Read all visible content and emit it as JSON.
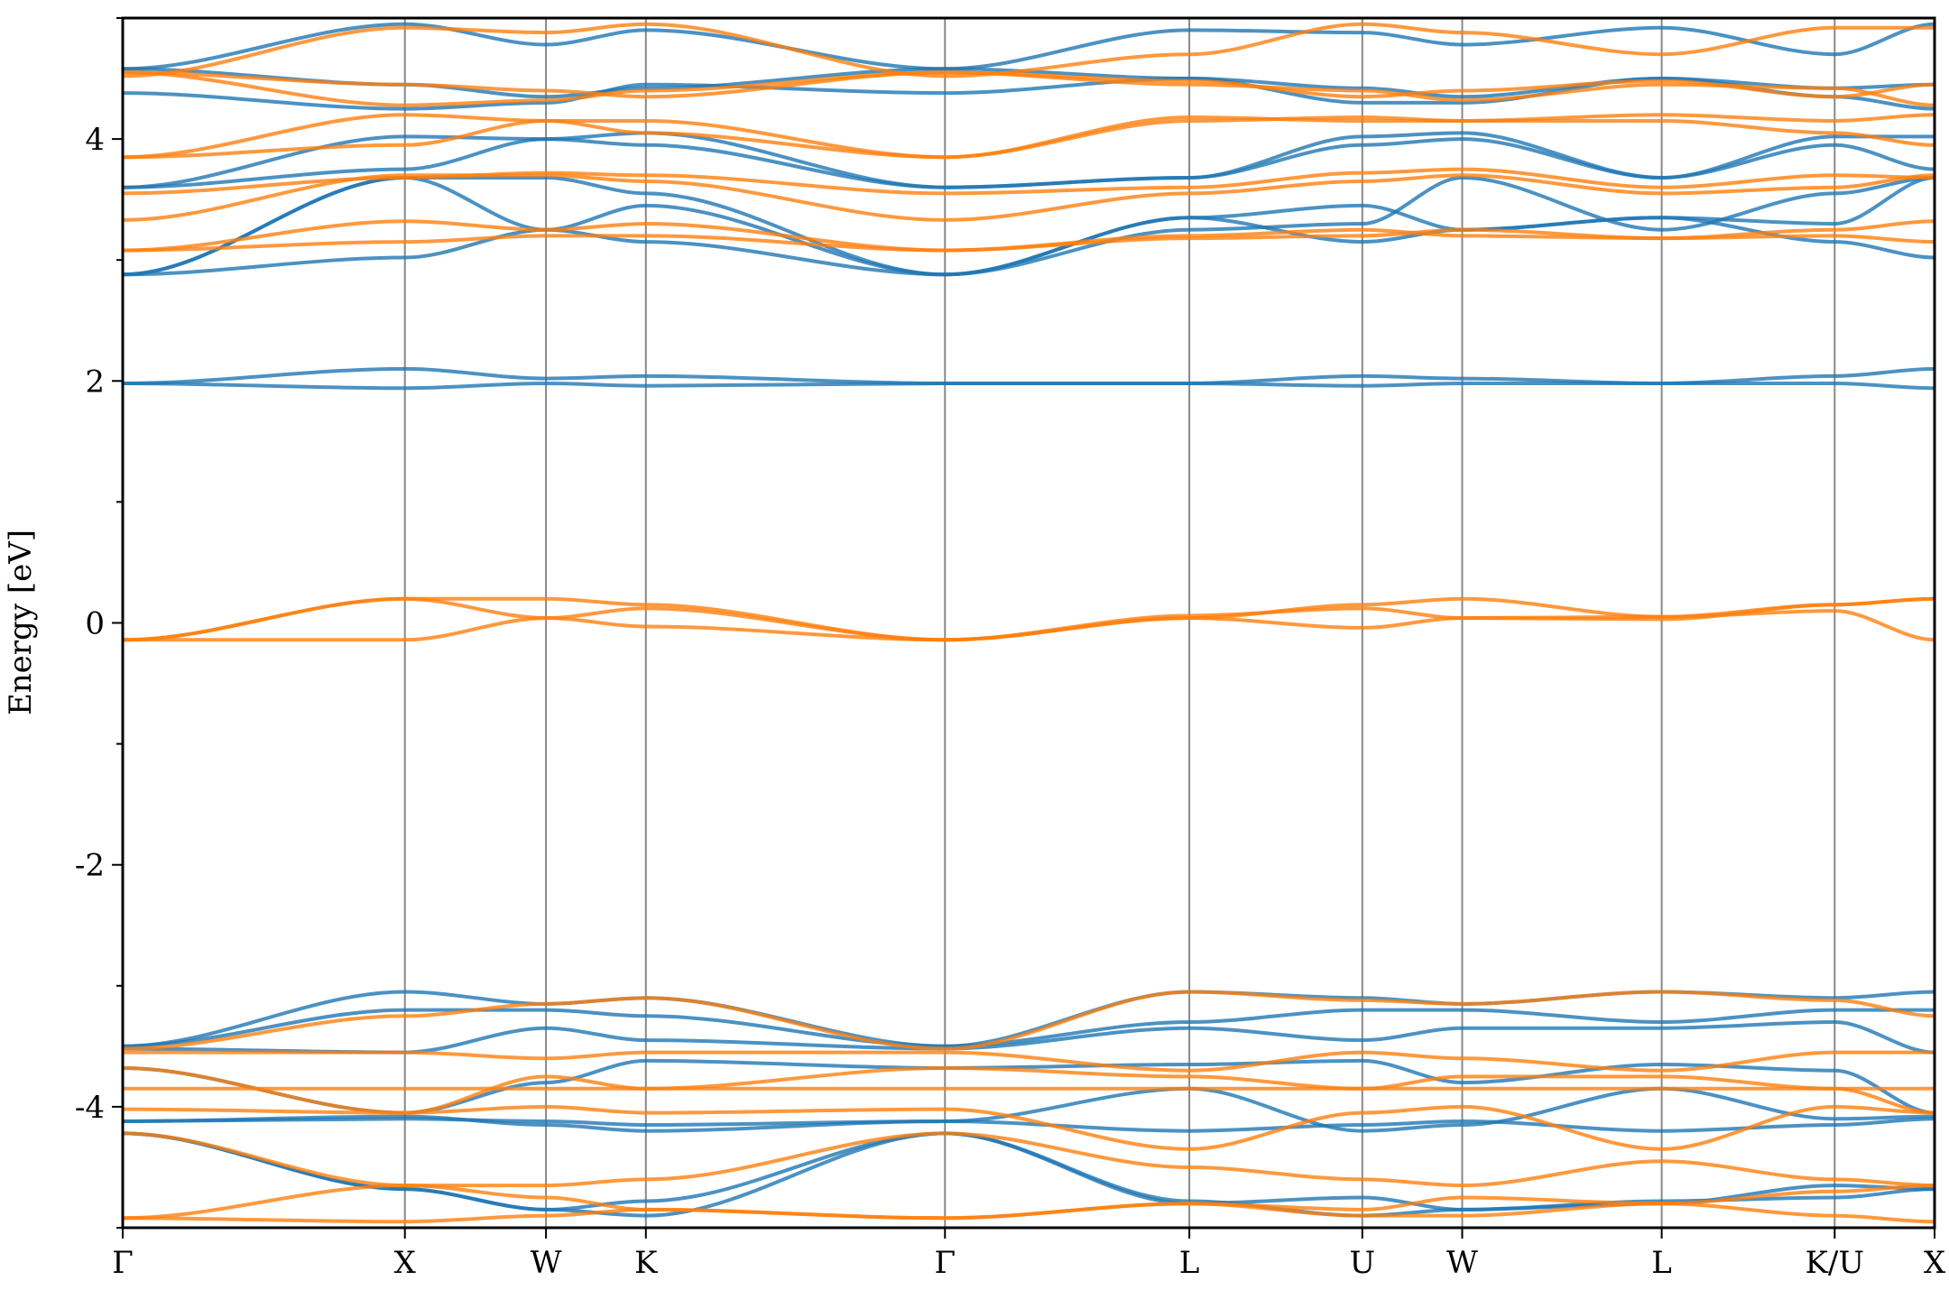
{
  "chart_data": {
    "type": "line",
    "title": "",
    "xlabel": "",
    "ylabel": "Energy [eV]",
    "ylim": [
      -5,
      5
    ],
    "grid": false,
    "legend": "none",
    "colors": {
      "spin_up": "#1f77b4",
      "spin_down": "#ff7f0e"
    },
    "kpoints": [
      {
        "label": "Γ",
        "x": 0.0
      },
      {
        "label": "X",
        "x": 1.0
      },
      {
        "label": "W",
        "x": 1.5
      },
      {
        "label": "K",
        "x": 1.854
      },
      {
        "label": "Γ",
        "x": 2.914
      },
      {
        "label": "L",
        "x": 3.78
      },
      {
        "label": "U",
        "x": 4.393
      },
      {
        "label": "W",
        "x": 4.747
      },
      {
        "label": "L",
        "x": 5.454
      },
      {
        "label": "K/U",
        "x": 6.067
      },
      {
        "label": "X",
        "x": 6.421
      }
    ],
    "yticks": [
      {
        "label": "4",
        "value": 4
      },
      {
        "label": "2",
        "value": 2
      },
      {
        "label": "0",
        "value": 0
      },
      {
        "label": "-2",
        "value": -2
      },
      {
        "label": "-4",
        "value": -4
      }
    ],
    "yminor": [
      -5,
      -3,
      -1,
      1,
      3,
      5
    ],
    "series": [
      {
        "spin": "down",
        "y": [
          -0.14,
          0.2,
          0.2,
          0.15,
          -0.14,
          0.04,
          0.15,
          0.2,
          0.05,
          0.15,
          0.2
        ]
      },
      {
        "spin": "down",
        "y": [
          -0.14,
          -0.14,
          0.04,
          -0.03,
          -0.14,
          0.04,
          -0.04,
          0.04,
          0.05,
          0.1,
          -0.14
        ]
      },
      {
        "spin": "down",
        "y": [
          -0.14,
          0.2,
          0.04,
          0.12,
          -0.14,
          0.06,
          0.12,
          0.04,
          0.03,
          0.15,
          0.2
        ]
      },
      {
        "spin": "up",
        "y": [
          1.98,
          2.1,
          2.02,
          2.04,
          1.98,
          1.98,
          2.04,
          2.02,
          1.98,
          2.04,
          2.1
        ]
      },
      {
        "spin": "up",
        "y": [
          1.98,
          1.94,
          1.98,
          1.96,
          1.98,
          1.98,
          1.96,
          1.98,
          1.98,
          1.98,
          1.94
        ]
      },
      {
        "spin": "up",
        "y": [
          2.88,
          3.02,
          3.25,
          3.15,
          2.88,
          3.35,
          3.15,
          3.25,
          3.35,
          3.15,
          3.02
        ]
      },
      {
        "spin": "up",
        "y": [
          2.88,
          3.68,
          3.25,
          3.45,
          2.88,
          3.35,
          3.45,
          3.25,
          3.35,
          3.3,
          3.68
        ]
      },
      {
        "spin": "up",
        "y": [
          2.88,
          3.68,
          3.68,
          3.55,
          2.88,
          3.25,
          3.3,
          3.68,
          3.25,
          3.55,
          3.68
        ]
      },
      {
        "spin": "up",
        "y": [
          3.6,
          3.75,
          4.0,
          3.95,
          3.6,
          3.68,
          3.95,
          4.0,
          3.68,
          3.95,
          3.75
        ]
      },
      {
        "spin": "up",
        "y": [
          3.6,
          4.02,
          4.0,
          4.05,
          3.6,
          3.68,
          4.02,
          4.05,
          3.68,
          4.02,
          4.02
        ]
      },
      {
        "spin": "up",
        "y": [
          4.38,
          4.25,
          4.3,
          4.45,
          4.38,
          4.5,
          4.3,
          4.3,
          4.5,
          4.35,
          4.25
        ]
      },
      {
        "spin": "up",
        "y": [
          4.58,
          4.45,
          4.35,
          4.42,
          4.58,
          4.5,
          4.42,
          4.35,
          4.5,
          4.42,
          4.45
        ]
      },
      {
        "spin": "up",
        "y": [
          4.58,
          4.95,
          4.78,
          4.9,
          4.58,
          4.9,
          4.88,
          4.78,
          4.92,
          4.7,
          4.95
        ]
      },
      {
        "spin": "down",
        "y": [
          3.08,
          3.15,
          3.2,
          3.2,
          3.08,
          3.2,
          3.25,
          3.2,
          3.18,
          3.2,
          3.15
        ]
      },
      {
        "spin": "down",
        "y": [
          3.08,
          3.32,
          3.25,
          3.3,
          3.08,
          3.18,
          3.2,
          3.25,
          3.18,
          3.25,
          3.32
        ]
      },
      {
        "spin": "down",
        "y": [
          3.33,
          3.7,
          3.7,
          3.65,
          3.33,
          3.55,
          3.65,
          3.7,
          3.55,
          3.6,
          3.7
        ]
      },
      {
        "spin": "down",
        "y": [
          3.55,
          3.68,
          3.72,
          3.7,
          3.55,
          3.6,
          3.72,
          3.75,
          3.6,
          3.7,
          3.68
        ]
      },
      {
        "spin": "down",
        "y": [
          3.85,
          3.95,
          4.15,
          4.05,
          3.85,
          4.15,
          4.18,
          4.15,
          4.15,
          4.05,
          3.95
        ]
      },
      {
        "spin": "down",
        "y": [
          3.85,
          4.2,
          4.15,
          4.15,
          3.85,
          4.18,
          4.15,
          4.15,
          4.2,
          4.15,
          4.2
        ]
      },
      {
        "spin": "down",
        "y": [
          4.55,
          4.28,
          4.32,
          4.4,
          4.55,
          4.45,
          4.4,
          4.32,
          4.45,
          4.42,
          4.28
        ]
      },
      {
        "spin": "down",
        "y": [
          4.55,
          4.45,
          4.4,
          4.35,
          4.55,
          4.48,
          4.35,
          4.4,
          4.48,
          4.35,
          4.45
        ]
      },
      {
        "spin": "down",
        "y": [
          4.52,
          4.92,
          4.88,
          4.95,
          4.52,
          4.7,
          4.95,
          4.88,
          4.7,
          4.92,
          4.92
        ]
      },
      {
        "spin": "up",
        "y": [
          -3.5,
          -3.05,
          -3.15,
          -3.1,
          -3.5,
          -3.05,
          -3.1,
          -3.15,
          -3.05,
          -3.1,
          -3.05
        ]
      },
      {
        "spin": "up",
        "y": [
          -3.5,
          -3.2,
          -3.2,
          -3.25,
          -3.5,
          -3.3,
          -3.2,
          -3.2,
          -3.3,
          -3.2,
          -3.2
        ]
      },
      {
        "spin": "up",
        "y": [
          -3.52,
          -3.55,
          -3.35,
          -3.45,
          -3.52,
          -3.35,
          -3.45,
          -3.35,
          -3.35,
          -3.3,
          -3.55
        ]
      },
      {
        "spin": "up",
        "y": [
          -3.68,
          -4.05,
          -3.8,
          -3.62,
          -3.68,
          -3.65,
          -3.62,
          -3.8,
          -3.65,
          -3.7,
          -4.05
        ]
      },
      {
        "spin": "up",
        "y": [
          -4.12,
          -4.1,
          -4.12,
          -4.15,
          -4.12,
          -4.2,
          -4.15,
          -4.12,
          -4.2,
          -4.15,
          -4.1
        ]
      },
      {
        "spin": "up",
        "y": [
          -4.12,
          -4.08,
          -4.15,
          -4.2,
          -4.12,
          -3.85,
          -4.2,
          -4.15,
          -3.85,
          -4.1,
          -4.08
        ]
      },
      {
        "spin": "up",
        "y": [
          -4.22,
          -4.68,
          -4.85,
          -4.78,
          -4.22,
          -4.78,
          -4.9,
          -4.85,
          -4.78,
          -4.75,
          -4.68
        ]
      },
      {
        "spin": "up",
        "y": [
          -4.22,
          -4.68,
          -4.85,
          -4.9,
          -4.22,
          -4.8,
          -4.75,
          -4.85,
          -4.8,
          -4.65,
          -4.68
        ]
      },
      {
        "spin": "down",
        "y": [
          -3.52,
          -3.25,
          -3.15,
          -3.1,
          -3.52,
          -3.05,
          -3.12,
          -3.15,
          -3.05,
          -3.12,
          -3.25
        ]
      },
      {
        "spin": "down",
        "y": [
          -3.55,
          -3.55,
          -3.6,
          -3.55,
          -3.55,
          -3.7,
          -3.55,
          -3.6,
          -3.7,
          -3.55,
          -3.55
        ]
      },
      {
        "spin": "down",
        "y": [
          -3.68,
          -4.05,
          -3.75,
          -3.85,
          -3.68,
          -3.75,
          -3.85,
          -3.75,
          -3.75,
          -3.85,
          -4.05
        ]
      },
      {
        "spin": "down",
        "y": [
          -3.85,
          -3.85,
          -3.85,
          -3.85,
          -3.85,
          -3.85,
          -3.85,
          -3.85,
          -3.85,
          -3.85,
          -3.85
        ]
      },
      {
        "spin": "down",
        "y": [
          -4.02,
          -4.05,
          -4.0,
          -4.05,
          -4.02,
          -4.35,
          -4.05,
          -4.0,
          -4.35,
          -4.0,
          -4.05
        ]
      },
      {
        "spin": "down",
        "y": [
          -4.22,
          -4.65,
          -4.65,
          -4.6,
          -4.22,
          -4.5,
          -4.6,
          -4.65,
          -4.45,
          -4.6,
          -4.65
        ]
      },
      {
        "spin": "down",
        "y": [
          -4.92,
          -4.65,
          -4.75,
          -4.85,
          -4.92,
          -4.8,
          -4.85,
          -4.75,
          -4.8,
          -4.7,
          -4.65
        ]
      },
      {
        "spin": "down",
        "y": [
          -4.92,
          -4.95,
          -4.9,
          -4.85,
          -4.92,
          -4.8,
          -4.9,
          -4.9,
          -4.8,
          -4.9,
          -4.95
        ]
      }
    ]
  }
}
